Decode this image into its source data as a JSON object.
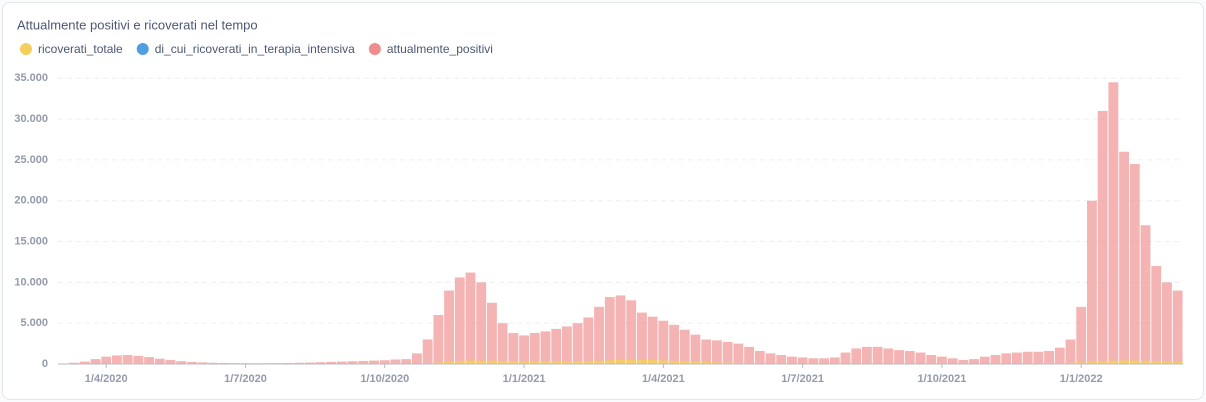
{
  "chart_data": {
    "type": "bar",
    "title": "Attualmente positivi e ricoverati nel tempo",
    "categories": [
      null,
      null,
      null,
      null,
      "1/4/2020",
      null,
      null,
      null,
      null,
      null,
      null,
      null,
      null,
      null,
      null,
      null,
      null,
      "1/7/2020",
      null,
      null,
      null,
      null,
      null,
      null,
      null,
      null,
      null,
      null,
      null,
      null,
      "1/10/2020",
      null,
      null,
      null,
      null,
      null,
      null,
      null,
      null,
      null,
      null,
      null,
      null,
      "1/1/2021",
      null,
      null,
      null,
      null,
      null,
      null,
      null,
      null,
      null,
      null,
      null,
      null,
      "1/4/2021",
      null,
      null,
      null,
      null,
      null,
      null,
      null,
      null,
      null,
      null,
      null,
      null,
      "1/7/2021",
      null,
      null,
      null,
      null,
      null,
      null,
      null,
      null,
      null,
      null,
      null,
      null,
      "1/10/2021",
      null,
      null,
      null,
      null,
      null,
      null,
      null,
      null,
      null,
      null,
      null,
      null,
      "1/1/2022",
      null,
      null,
      null,
      null,
      null,
      null,
      null,
      null,
      null
    ],
    "series": [
      {
        "name": "ricoverati_totale",
        "color": "#f5cf5b",
        "values": [
          0,
          5,
          20,
          60,
          100,
          110,
          100,
          80,
          60,
          40,
          30,
          20,
          15,
          10,
          8,
          5,
          5,
          5,
          5,
          5,
          5,
          5,
          5,
          5,
          5,
          5,
          5,
          5,
          5,
          5,
          5,
          15,
          25,
          50,
          100,
          180,
          280,
          380,
          420,
          420,
          400,
          370,
          330,
          300,
          290,
          290,
          300,
          310,
          320,
          350,
          400,
          450,
          500,
          520,
          500,
          470,
          430,
          380,
          330,
          280,
          230,
          190,
          160,
          130,
          100,
          80,
          60,
          45,
          35,
          30,
          28,
          28,
          30,
          40,
          55,
          65,
          70,
          70,
          65,
          60,
          55,
          50,
          45,
          40,
          38,
          38,
          40,
          45,
          55,
          65,
          75,
          85,
          100,
          120,
          150,
          200,
          280,
          350,
          400,
          420,
          410,
          380,
          340,
          300,
          260
        ]
      },
      {
        "name": "di_cui_ricoverati_in_terapia_intensiva",
        "color": "#509ee3",
        "values": [
          0,
          1,
          3,
          8,
          13,
          14,
          13,
          10,
          8,
          5,
          4,
          3,
          2,
          1,
          1,
          1,
          1,
          1,
          1,
          1,
          1,
          1,
          1,
          1,
          1,
          1,
          1,
          1,
          1,
          1,
          1,
          2,
          3,
          6,
          12,
          22,
          35,
          48,
          52,
          52,
          50,
          46,
          41,
          38,
          36,
          36,
          38,
          39,
          40,
          44,
          50,
          56,
          62,
          65,
          62,
          59,
          54,
          48,
          41,
          35,
          29,
          24,
          20,
          16,
          12,
          10,
          8,
          6,
          4,
          4,
          3,
          3,
          4,
          5,
          7,
          8,
          9,
          9,
          8,
          8,
          7,
          6,
          6,
          5,
          5,
          5,
          5,
          6,
          7,
          8,
          9,
          11,
          12,
          15,
          19,
          25,
          35,
          44,
          50,
          52,
          51,
          48,
          42,
          38,
          32
        ]
      },
      {
        "name": "attualmente_positivi",
        "color": "#ef8c8c",
        "values": [
          50,
          150,
          300,
          600,
          900,
          1050,
          1100,
          1000,
          850,
          650,
          500,
          350,
          250,
          200,
          150,
          130,
          110,
          100,
          100,
          100,
          110,
          120,
          150,
          180,
          220,
          260,
          300,
          340,
          380,
          420,
          460,
          550,
          600,
          1300,
          3000,
          6000,
          9000,
          10600,
          11200,
          10000,
          7500,
          5000,
          3800,
          3500,
          3800,
          4000,
          4300,
          4600,
          5000,
          5700,
          7000,
          8200,
          8400,
          7800,
          6300,
          5800,
          5300,
          4800,
          4200,
          3600,
          3000,
          2900,
          2700,
          2500,
          2100,
          1600,
          1300,
          1100,
          900,
          800,
          700,
          700,
          800,
          1400,
          1900,
          2100,
          2100,
          1900,
          1700,
          1600,
          1400,
          1100,
          900,
          700,
          500,
          600,
          900,
          1100,
          1300,
          1400,
          1500,
          1500,
          1600,
          2000,
          3000,
          7000,
          20000,
          31000,
          34500,
          26000,
          24500,
          17000,
          12000,
          10000,
          9000
        ]
      }
    ],
    "ylim": [
      0,
      36500
    ],
    "yticks": [
      0,
      {
        "value": 5000,
        "label": "5.000"
      },
      {
        "value": 10000,
        "label": "10.000"
      },
      {
        "value": 15000,
        "label": "15.000"
      },
      {
        "value": 20000,
        "label": "20.000"
      },
      {
        "value": 25000,
        "label": "25.000"
      },
      {
        "value": 30000,
        "label": "30.000"
      },
      {
        "value": 35000,
        "label": "35.000"
      }
    ],
    "grid": true
  }
}
